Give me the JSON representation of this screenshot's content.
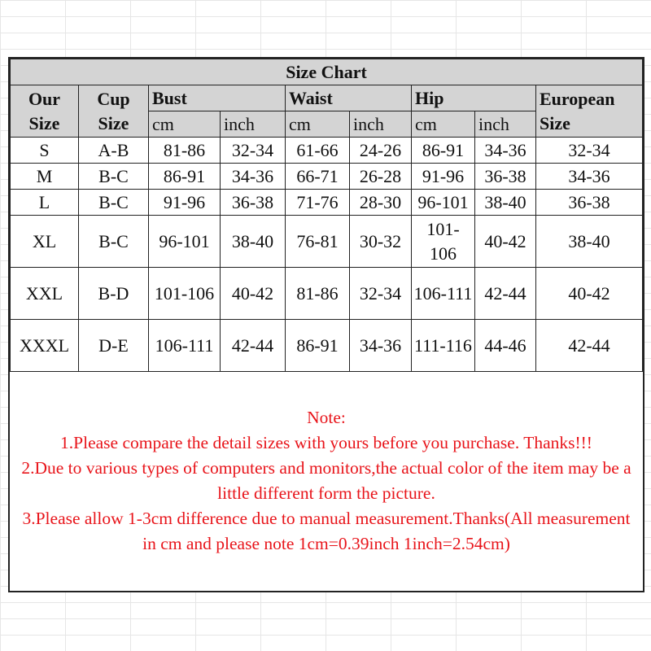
{
  "title": "Size Chart",
  "headers": {
    "our_size": [
      "Our",
      "Size"
    ],
    "cup_size": [
      "Cup",
      "Size"
    ],
    "bust": "Bust",
    "waist": "Waist",
    "hip": "Hip",
    "european": [
      "European",
      "Size"
    ],
    "cm": "cm",
    "inch": "inch"
  },
  "rows": [
    [
      "S",
      "A-B",
      "81-86",
      "32-34",
      "61-66",
      "24-26",
      "86-91",
      "34-36",
      "32-34"
    ],
    [
      "M",
      "B-C",
      "86-91",
      "34-36",
      "66-71",
      "26-28",
      "91-96",
      "36-38",
      "34-36"
    ],
    [
      "L",
      "B-C",
      "91-96",
      "36-38",
      "71-76",
      "28-30",
      "96-101",
      "38-40",
      "36-38"
    ],
    [
      "XL",
      "B-C",
      "96-101",
      "38-40",
      "76-81",
      "30-32",
      "101-106",
      "40-42",
      "38-40"
    ],
    [
      "XXL",
      "B-D",
      "101-106",
      "40-42",
      "81-86",
      "32-34",
      "106-111",
      "42-44",
      "40-42"
    ],
    [
      "XXXL",
      "D-E",
      "106-111",
      "42-44",
      "86-91",
      "34-36",
      "111-116",
      "44-46",
      "42-44"
    ]
  ],
  "note": {
    "heading": "Note:",
    "lines": [
      "1.Please compare the detail sizes with yours before you purchase. Thanks!!!",
      "2.Due to various types of computers and monitors,the actual color of the item may be a little different form the picture.",
      "3.Please allow 1-3cm difference due to manual measurement.Thanks(All measurement in cm and please note 1cm=0.39inch 1inch=2.54cm)"
    ],
    "color": "#e8141a"
  },
  "colors": {
    "header_bg": "#d4d4d4",
    "border": "#222222"
  }
}
